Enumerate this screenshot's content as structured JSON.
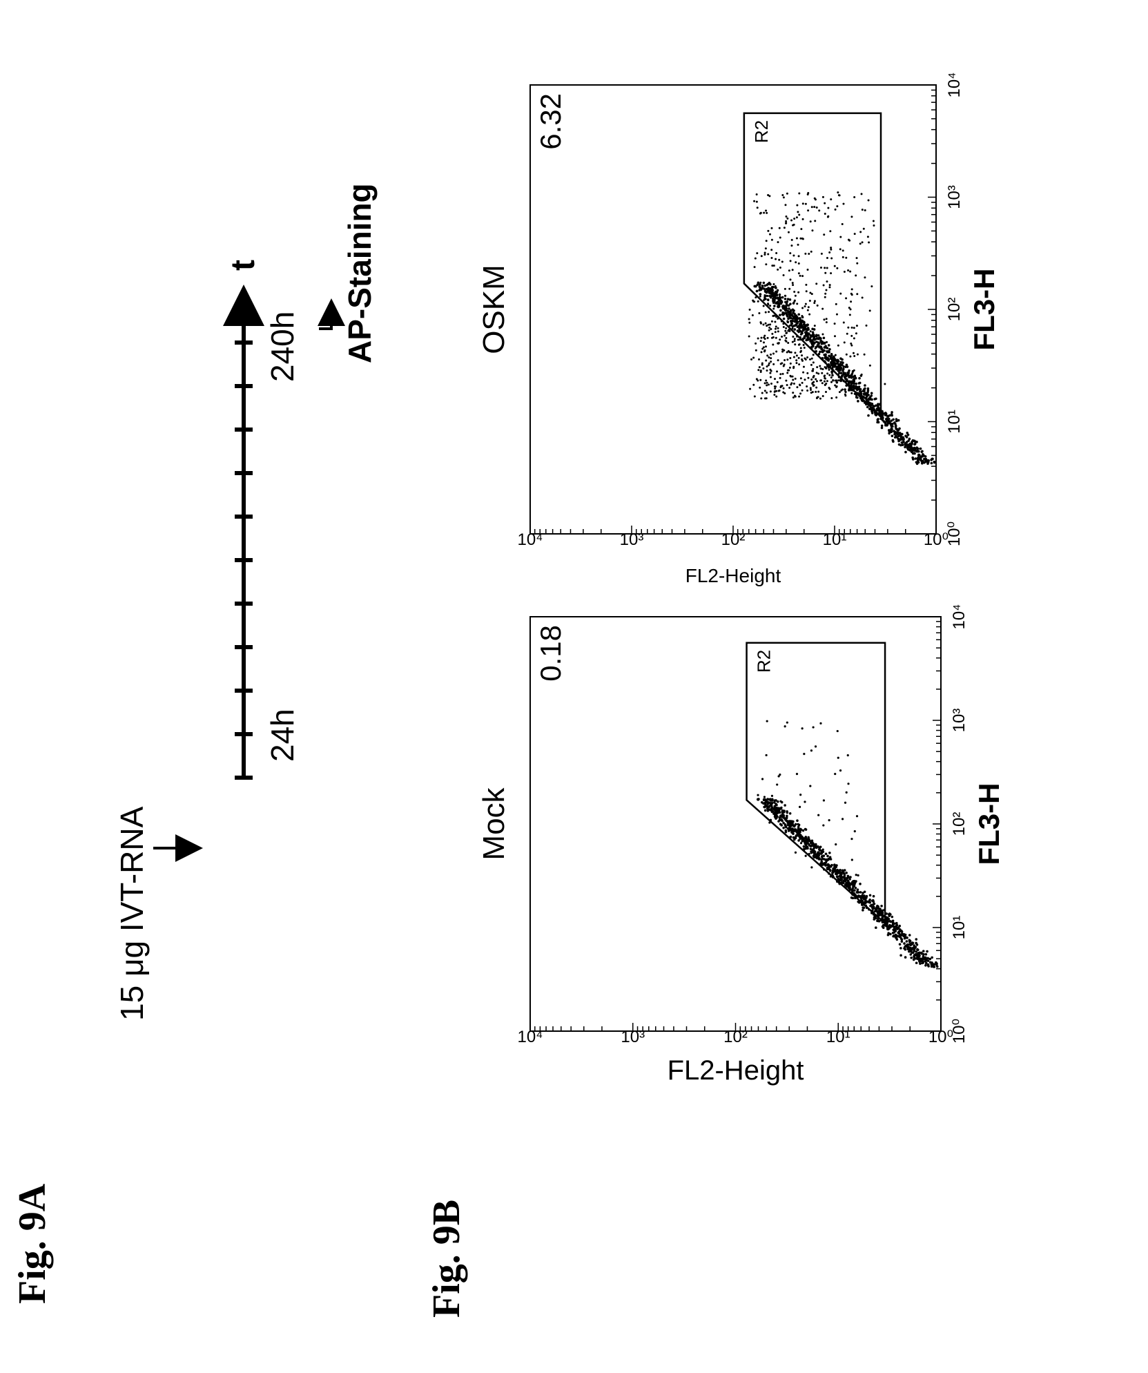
{
  "figure_labels": {
    "fig_9a": "Fig. 9A",
    "fig_9b": "Fig. 9B"
  },
  "timeline": {
    "input_label": "15 μg IVT-RNA",
    "start_label": "24h",
    "end_label": "240h",
    "axis_label": "t",
    "endpoint_label": "AP-Staining"
  },
  "chart_data": [
    {
      "type": "scatter",
      "title": "Mock",
      "xlabel": "FL3-H",
      "ylabel": "FL2-Height",
      "x_scale": "log",
      "y_scale": "log",
      "xlim": [
        1,
        10000
      ],
      "ylim": [
        1,
        10000
      ],
      "x_tick_labels": [
        "10⁰",
        "10¹",
        "10²",
        "10³",
        "10⁴"
      ],
      "y_tick_labels": [
        "10⁰",
        "10¹",
        "10²",
        "10³",
        "10⁴"
      ],
      "gate_label": "R2",
      "gate_value": "0.18",
      "grid": false
    },
    {
      "type": "scatter",
      "title": "OSKM",
      "xlabel": "FL3-H",
      "ylabel": "FL2-Height",
      "x_scale": "log",
      "y_scale": "log",
      "xlim": [
        1,
        10000
      ],
      "ylim": [
        1,
        10000
      ],
      "x_tick_labels": [
        "10⁰",
        "10¹",
        "10²",
        "10³",
        "10⁴"
      ],
      "y_tick_labels": [
        "10⁰",
        "10¹",
        "10²",
        "10³",
        "10⁴"
      ],
      "gate_label": "R2",
      "gate_value": "6.32",
      "grid": false
    }
  ]
}
